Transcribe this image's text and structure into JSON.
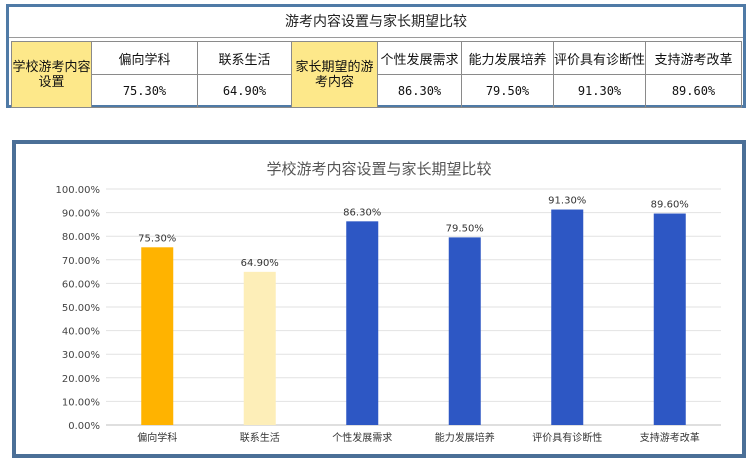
{
  "table": {
    "title": "游考内容设置与家长期望比较",
    "left_header": "学校游考内容设置",
    "left_items": [
      {
        "label": "偏向学科",
        "value": "75.30%"
      },
      {
        "label": "联系生活",
        "value": "64.90%"
      }
    ],
    "right_header": "家长期望的游考内容",
    "right_items": [
      {
        "label": "个性发展需求",
        "value": "86.30%"
      },
      {
        "label": "能力发展培养",
        "value": "79.50%"
      },
      {
        "label": "评价具有诊断性",
        "value": "91.30%"
      },
      {
        "label": "支持游考改革",
        "value": "89.60%"
      }
    ],
    "header_color": "#fde88a"
  },
  "chart_data": {
    "type": "bar",
    "title": "学校游考内容设置与家长期望比较",
    "categories": [
      "偏向学科",
      "联系生活",
      "个性发展需求",
      "能力发展培养",
      "评价具有诊断性",
      "支持游考改革"
    ],
    "values": [
      75.3,
      64.9,
      86.3,
      79.5,
      91.3,
      89.6
    ],
    "data_labels": [
      "75.30%",
      "64.90%",
      "86.30%",
      "79.50%",
      "91.30%",
      "89.60%"
    ],
    "bar_colors": [
      "#ffb300",
      "#fdeeb8",
      "#2d57c4",
      "#2d57c4",
      "#2d57c4",
      "#2d57c4"
    ],
    "ylim": [
      0,
      100
    ],
    "yticks": [
      0,
      10,
      20,
      30,
      40,
      50,
      60,
      70,
      80,
      90,
      100
    ],
    "ytick_labels": [
      "0.00%",
      "10.00%",
      "20.00%",
      "30.00%",
      "40.00%",
      "50.00%",
      "60.00%",
      "70.00%",
      "80.00%",
      "90.00%",
      "100.00%"
    ],
    "grid": true,
    "legend": "none",
    "xlabel": "",
    "ylabel": ""
  }
}
